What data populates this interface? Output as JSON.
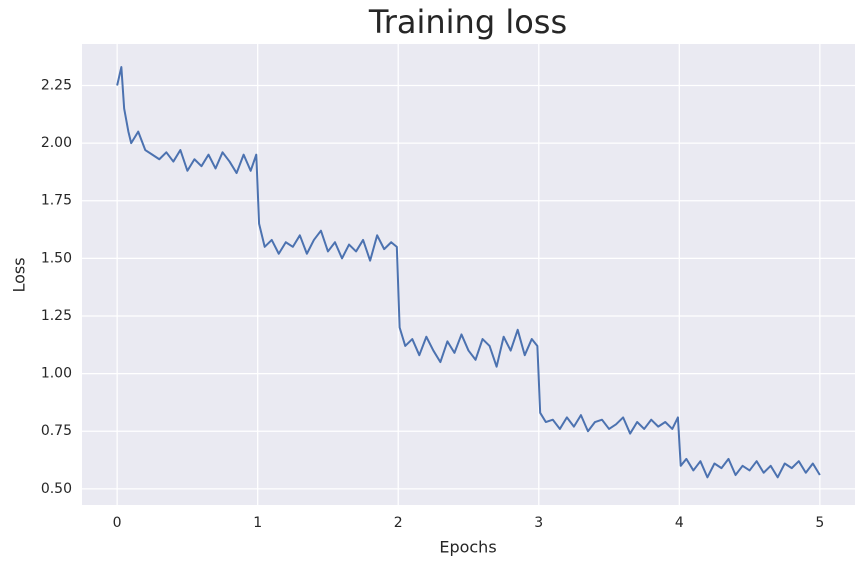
{
  "chart_data": {
    "type": "line",
    "title": "Training loss",
    "x_label": "Epochs",
    "y_label": "Loss",
    "x": [
      0,
      0.03,
      0.05,
      0.08,
      0.1,
      0.15,
      0.2,
      0.25,
      0.3,
      0.35,
      0.4,
      0.45,
      0.5,
      0.55,
      0.6,
      0.65,
      0.7,
      0.75,
      0.8,
      0.85,
      0.9,
      0.95,
      0.99,
      1.01,
      1.05,
      1.1,
      1.15,
      1.2,
      1.25,
      1.3,
      1.35,
      1.4,
      1.45,
      1.5,
      1.55,
      1.6,
      1.65,
      1.7,
      1.75,
      1.8,
      1.85,
      1.9,
      1.95,
      1.99,
      2.01,
      2.05,
      2.1,
      2.15,
      2.2,
      2.25,
      2.3,
      2.35,
      2.4,
      2.45,
      2.5,
      2.55,
      2.6,
      2.65,
      2.7,
      2.75,
      2.8,
      2.85,
      2.9,
      2.95,
      2.99,
      3.01,
      3.05,
      3.1,
      3.15,
      3.2,
      3.25,
      3.3,
      3.35,
      3.4,
      3.45,
      3.5,
      3.55,
      3.6,
      3.65,
      3.7,
      3.75,
      3.8,
      3.85,
      3.9,
      3.95,
      3.99,
      4.01,
      4.05,
      4.1,
      4.15,
      4.2,
      4.25,
      4.3,
      4.35,
      4.4,
      4.45,
      4.5,
      4.55,
      4.6,
      4.65,
      4.7,
      4.75,
      4.8,
      4.85,
      4.9,
      4.95,
      5.0
    ],
    "series": [
      {
        "name": "Loss",
        "color": "#4c72b0",
        "values": [
          2.25,
          2.33,
          2.15,
          2.05,
          2.0,
          2.05,
          1.97,
          1.95,
          1.93,
          1.96,
          1.92,
          1.97,
          1.88,
          1.93,
          1.9,
          1.95,
          1.89,
          1.96,
          1.92,
          1.87,
          1.95,
          1.88,
          1.95,
          1.65,
          1.55,
          1.58,
          1.52,
          1.57,
          1.55,
          1.6,
          1.52,
          1.58,
          1.62,
          1.53,
          1.57,
          1.5,
          1.56,
          1.53,
          1.58,
          1.49,
          1.6,
          1.54,
          1.57,
          1.55,
          1.2,
          1.12,
          1.15,
          1.08,
          1.16,
          1.1,
          1.05,
          1.14,
          1.09,
          1.17,
          1.1,
          1.06,
          1.15,
          1.12,
          1.03,
          1.16,
          1.1,
          1.19,
          1.08,
          1.15,
          1.12,
          0.83,
          0.79,
          0.8,
          0.76,
          0.81,
          0.77,
          0.82,
          0.75,
          0.79,
          0.8,
          0.76,
          0.78,
          0.81,
          0.74,
          0.79,
          0.76,
          0.8,
          0.77,
          0.79,
          0.76,
          0.81,
          0.6,
          0.63,
          0.58,
          0.62,
          0.55,
          0.61,
          0.59,
          0.63,
          0.56,
          0.6,
          0.58,
          0.62,
          0.57,
          0.6,
          0.55,
          0.61,
          0.59,
          0.62,
          0.57,
          0.61,
          0.56
        ]
      }
    ],
    "xlim": [
      -0.25,
      5.25
    ],
    "ylim": [
      0.43,
      2.43
    ],
    "xticks": [
      0,
      1,
      2,
      3,
      4,
      5
    ],
    "yticks": [
      {
        "value": 0.5,
        "label": "0.50"
      },
      {
        "value": 0.75,
        "label": "0.75"
      },
      {
        "value": 1.0,
        "label": "1.00"
      },
      {
        "value": 1.25,
        "label": "1.25"
      },
      {
        "value": 1.5,
        "label": "1.50"
      },
      {
        "value": 1.75,
        "label": "1.75"
      },
      {
        "value": 2.0,
        "label": "2.00"
      },
      {
        "value": 2.25,
        "label": "2.25"
      }
    ],
    "grid": true
  }
}
